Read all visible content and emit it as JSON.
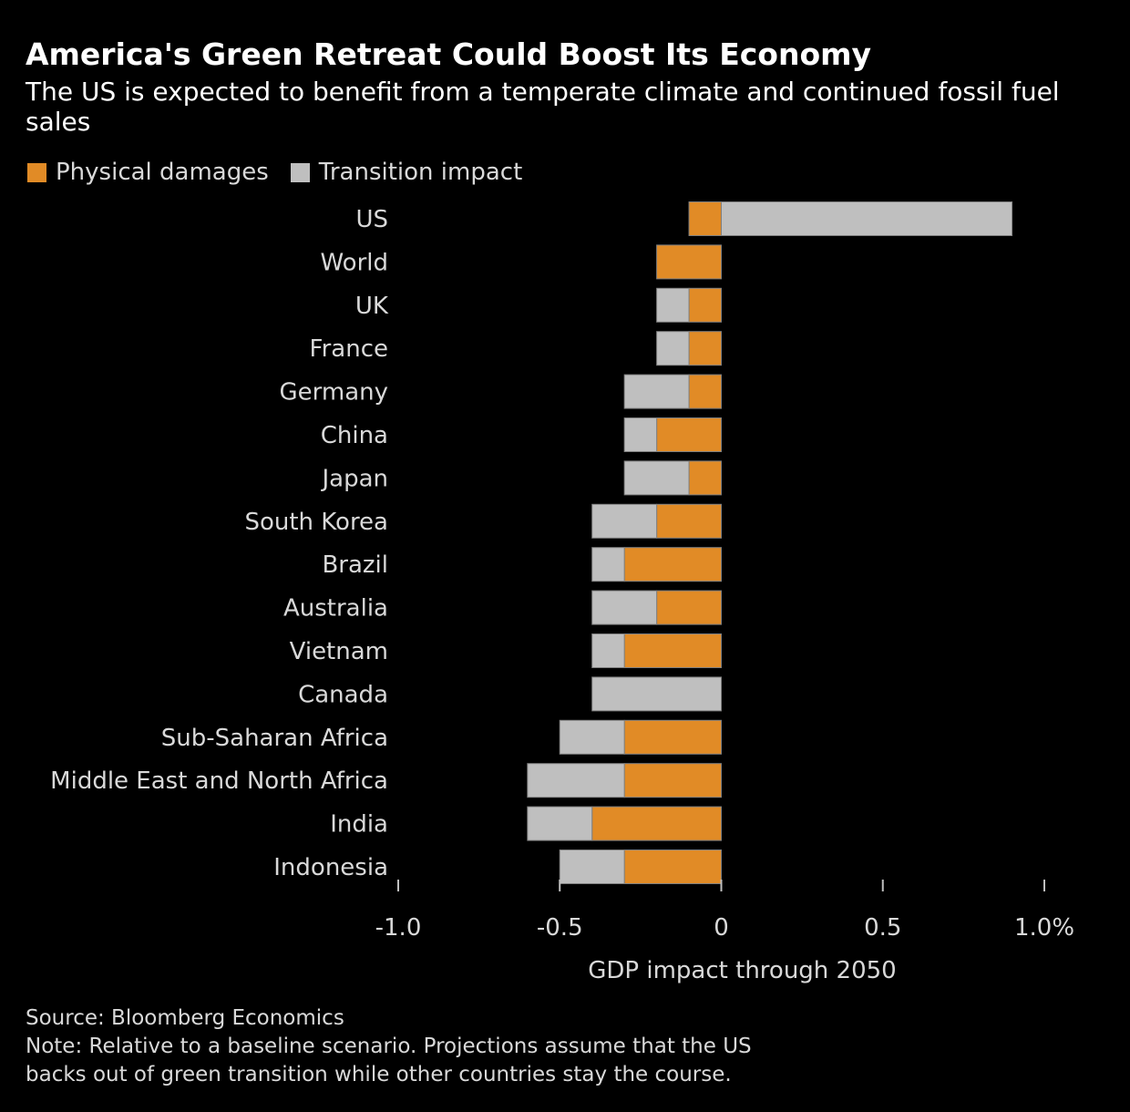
{
  "colors": {
    "background": "#000000",
    "physical": "#E18B26",
    "transition": "#BFBFBF",
    "text": "#D9D9D9",
    "title": "#FFFFFF"
  },
  "header": {
    "title": "America's Green Retreat Could Boost Its Economy",
    "subtitle": "The US is expected to benefit from a temperate climate and continued fossil fuel sales"
  },
  "legend": {
    "physical_label": "Physical damages",
    "transition_label": "Transition impact"
  },
  "footer": {
    "source": "Source: Bloomberg Economics",
    "note_line1": "Note: Relative to a baseline scenario. Projections assume that the US",
    "note_line2": "backs out of green transition while other countries stay the course."
  },
  "chart_data": {
    "type": "bar",
    "orientation": "horizontal",
    "stacked": true,
    "title": "America's Green Retreat Could Boost Its Economy",
    "subtitle": "The US is expected to benefit from a temperate climate and continued fossil fuel sales",
    "xlabel": "GDP impact through 2050",
    "ylabel": "",
    "xlim": [
      -1.0,
      1.0
    ],
    "xticks": [
      -1.0,
      -0.5,
      0,
      0.5,
      1.0
    ],
    "xtick_labels": [
      "-1.0",
      "-0.5",
      "0",
      "0.5",
      "1.0%"
    ],
    "legend_position": "top-left",
    "grid": false,
    "categories": [
      "US",
      "World",
      "UK",
      "France",
      "Germany",
      "China",
      "Japan",
      "South Korea",
      "Brazil",
      "Australia",
      "Vietnam",
      "Canada",
      "Sub-Saharan Africa",
      "Middle East and North Africa",
      "India",
      "Indonesia"
    ],
    "series": [
      {
        "name": "Physical damages",
        "values": [
          -0.1,
          -0.2,
          -0.1,
          -0.1,
          -0.1,
          -0.2,
          -0.1,
          -0.2,
          -0.3,
          -0.2,
          -0.3,
          0.0,
          -0.3,
          -0.3,
          -0.4,
          -0.3
        ]
      },
      {
        "name": "Transition impact",
        "values": [
          0.9,
          0.0,
          -0.1,
          -0.1,
          -0.2,
          -0.1,
          -0.2,
          -0.2,
          -0.1,
          -0.2,
          -0.1,
          -0.4,
          -0.2,
          -0.3,
          -0.2,
          -0.2
        ]
      }
    ]
  }
}
